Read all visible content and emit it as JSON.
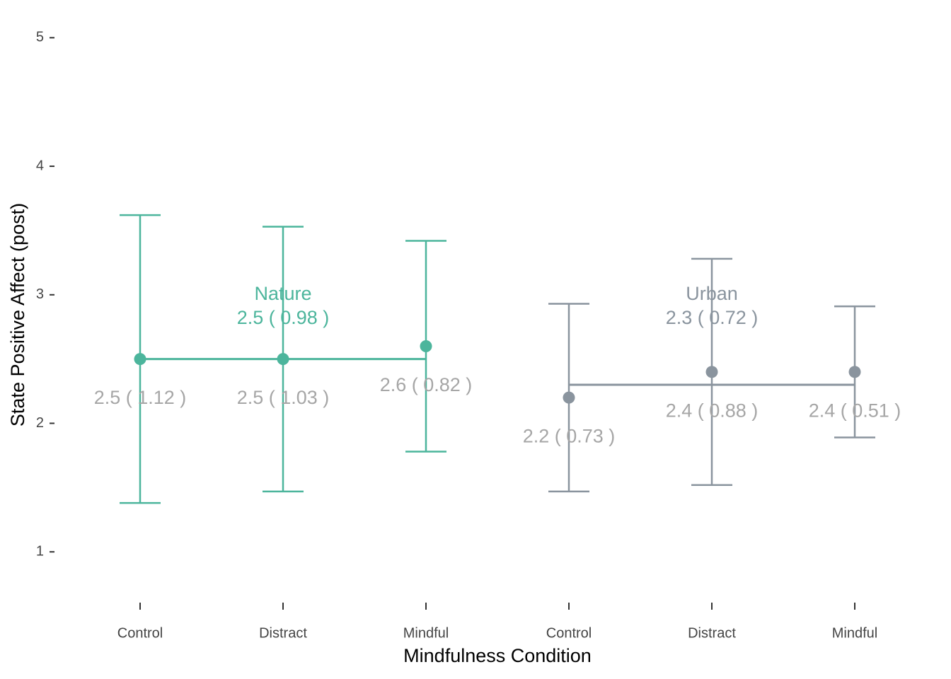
{
  "chart_data": {
    "type": "errorbar",
    "x_label": "Mindfulness Condition",
    "y_label": "State Positive Affect (post)",
    "categories": [
      "Control",
      "Distract",
      "Mindful",
      "Control",
      "Distract",
      "Mindful"
    ],
    "ylim": [
      0.55,
      5.2
    ],
    "yticks": [
      1,
      2,
      3,
      4,
      5
    ],
    "label_color": "#a6a6a6",
    "series": [
      {
        "name": "Nature",
        "color": "#4cb59c",
        "values": [
          2.5,
          2.5,
          2.6,
          null,
          null,
          null
        ],
        "errors": [
          1.12,
          1.03,
          0.82,
          null,
          null,
          null
        ],
        "value_labels": [
          "2.5 ( 1.12 )",
          "2.5 ( 1.03 )",
          "2.6 ( 0.82 )",
          null,
          null,
          null
        ],
        "mean": 2.5,
        "mean_sd": 0.98,
        "mean_label": "2.5 ( 0.98 )"
      },
      {
        "name": "Urban",
        "color": "#8a949e",
        "values": [
          null,
          null,
          null,
          2.2,
          2.4,
          2.4
        ],
        "errors": [
          null,
          null,
          null,
          0.73,
          0.88,
          0.51
        ],
        "value_labels": [
          null,
          null,
          null,
          "2.2 ( 0.73 )",
          "2.4 ( 0.88 )",
          "2.4 ( 0.51 )"
        ],
        "mean": 2.3,
        "mean_sd": 0.72,
        "mean_label": "2.3 ( 0.72 )"
      }
    ]
  }
}
